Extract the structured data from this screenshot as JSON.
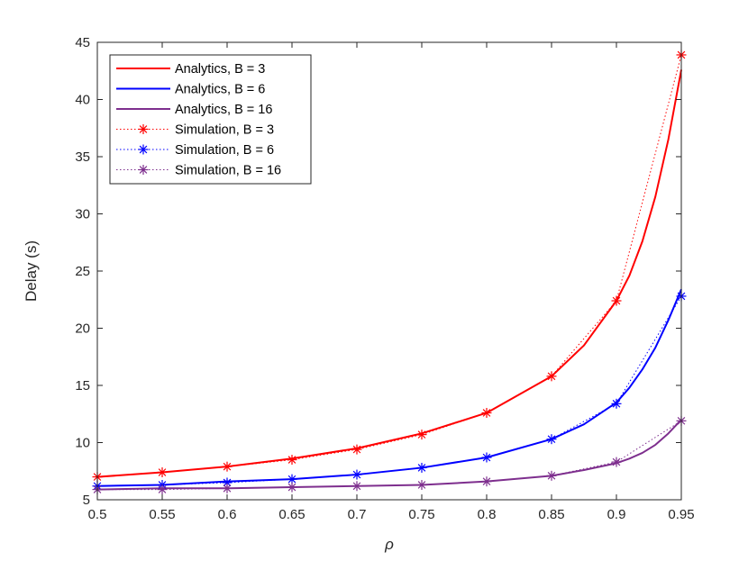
{
  "chart_data": {
    "type": "line",
    "title": "",
    "xlabel": "ρ",
    "ylabel": "Delay (s)",
    "xlim": [
      0.5,
      0.95
    ],
    "ylim": [
      5,
      45
    ],
    "x_ticks": [
      0.5,
      0.55,
      0.6,
      0.65,
      0.7,
      0.75,
      0.8,
      0.85,
      0.9,
      0.95
    ],
    "x_tick_labels": [
      "0.5",
      "0.55",
      "0.6",
      "0.65",
      "0.7",
      "0.75",
      "0.8",
      "0.85",
      "0.9",
      "0.95"
    ],
    "y_ticks": [
      5,
      10,
      15,
      20,
      25,
      30,
      35,
      40,
      45
    ],
    "y_tick_labels": [
      "5",
      "10",
      "15",
      "20",
      "25",
      "30",
      "35",
      "40",
      "45"
    ],
    "grid": false,
    "legend_position": "top-left",
    "series": [
      {
        "name": "Analytics, B = 3",
        "style": "solid",
        "color": "#ff0000",
        "x": [
          0.5,
          0.55,
          0.6,
          0.65,
          0.7,
          0.75,
          0.8,
          0.85,
          0.875,
          0.9,
          0.91,
          0.92,
          0.93,
          0.94,
          0.95
        ],
        "y": [
          7.0,
          7.4,
          7.9,
          8.6,
          9.5,
          10.8,
          12.6,
          15.8,
          18.5,
          22.4,
          24.6,
          27.6,
          31.5,
          36.5,
          42.6
        ]
      },
      {
        "name": "Analytics, B = 6",
        "style": "solid",
        "color": "#0000ff",
        "x": [
          0.5,
          0.55,
          0.6,
          0.65,
          0.7,
          0.75,
          0.8,
          0.85,
          0.875,
          0.9,
          0.91,
          0.92,
          0.93,
          0.94,
          0.95
        ],
        "y": [
          6.2,
          6.3,
          6.6,
          6.8,
          7.2,
          7.8,
          8.7,
          10.3,
          11.6,
          13.5,
          14.8,
          16.4,
          18.3,
          20.7,
          23.4
        ]
      },
      {
        "name": "Analytics, B = 16",
        "style": "solid",
        "color": "#7e2f8e",
        "x": [
          0.5,
          0.55,
          0.6,
          0.65,
          0.7,
          0.75,
          0.8,
          0.85,
          0.875,
          0.9,
          0.91,
          0.92,
          0.93,
          0.94,
          0.95
        ],
        "y": [
          5.9,
          6.0,
          6.0,
          6.1,
          6.2,
          6.3,
          6.6,
          7.1,
          7.6,
          8.2,
          8.6,
          9.1,
          9.8,
          10.8,
          12.0
        ]
      },
      {
        "name": "Simulation, B = 3",
        "style": "dotted",
        "marker": "asterisk",
        "color": "#ff0000",
        "x": [
          0.5,
          0.55,
          0.6,
          0.65,
          0.7,
          0.75,
          0.8,
          0.85,
          0.9,
          0.95
        ],
        "y": [
          7.0,
          7.4,
          7.9,
          8.5,
          9.4,
          10.7,
          12.6,
          15.8,
          22.4,
          43.9
        ]
      },
      {
        "name": "Simulation, B = 6",
        "style": "dotted",
        "marker": "asterisk",
        "color": "#0000ff",
        "x": [
          0.5,
          0.55,
          0.6,
          0.65,
          0.7,
          0.75,
          0.8,
          0.85,
          0.9,
          0.95
        ],
        "y": [
          6.2,
          6.3,
          6.5,
          6.8,
          7.2,
          7.8,
          8.7,
          10.3,
          13.4,
          22.8
        ]
      },
      {
        "name": "Simulation, B = 16",
        "style": "dotted",
        "marker": "asterisk",
        "color": "#7e2f8e",
        "x": [
          0.5,
          0.55,
          0.6,
          0.65,
          0.7,
          0.75,
          0.8,
          0.85,
          0.9,
          0.95
        ],
        "y": [
          5.9,
          5.9,
          6.0,
          6.1,
          6.2,
          6.3,
          6.6,
          7.1,
          8.3,
          11.9
        ]
      }
    ]
  }
}
